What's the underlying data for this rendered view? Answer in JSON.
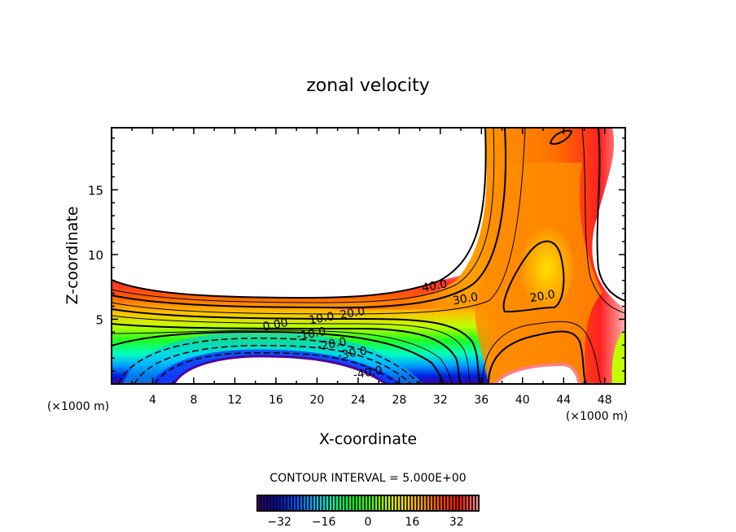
{
  "chart_data": {
    "type": "heatmap",
    "subtype": "filled-contour",
    "title": "zonal velocity",
    "xlabel": "X-coordinate",
    "ylabel": "Z-coordinate",
    "x_unit_label": "(×1000 m)",
    "y_unit_label": "(×1000 m)",
    "xlim": [
      0,
      50
    ],
    "ylim": [
      0,
      19.8
    ],
    "x_ticks": [
      4,
      8,
      12,
      16,
      20,
      24,
      28,
      32,
      36,
      40,
      44,
      48
    ],
    "x_tick_labels": [
      "4",
      "8",
      "12",
      "16",
      "20",
      "24",
      "28",
      "32",
      "36",
      "40",
      "44",
      "48"
    ],
    "y_ticks": [
      5,
      10,
      15
    ],
    "y_tick_labels": [
      "5",
      "10",
      "15"
    ],
    "contour_interval_text": "CONTOUR INTERVAL = 5.000E+00",
    "contour_interval": 5.0,
    "contour_labels": [
      {
        "text": "0.00",
        "x": 16.0,
        "y": 4.3
      },
      {
        "text": "10.0",
        "x": 20.5,
        "y": 4.8
      },
      {
        "text": "-10.0",
        "x": 19.5,
        "y": 3.6
      },
      {
        "text": "20.0",
        "x": 23.5,
        "y": 5.2
      },
      {
        "text": "-20.0",
        "x": 21.5,
        "y": 2.8
      },
      {
        "text": "-30.0",
        "x": 23.5,
        "y": 2.1
      },
      {
        "text": "-40.0",
        "x": 25.0,
        "y": 0.6
      },
      {
        "text": "40.0",
        "x": 31.5,
        "y": 7.3
      },
      {
        "text": "30.0",
        "x": 34.5,
        "y": 6.3
      },
      {
        "text": "20.0",
        "x": 42.0,
        "y": 6.5
      }
    ],
    "colorbar": {
      "min": -40,
      "max": 40,
      "tick_values": [
        -32,
        -16,
        0,
        16,
        32
      ],
      "tick_labels": [
        "−32",
        "−16",
        "0",
        "16",
        "32"
      ],
      "colormap": [
        "#3a0070",
        "#0010b0",
        "#0050ff",
        "#00b0ff",
        "#00ffb0",
        "#00ff40",
        "#40ff00",
        "#c0ff00",
        "#ffe000",
        "#ffa000",
        "#ff5000",
        "#ff1000",
        "#ff9090"
      ]
    },
    "features": {
      "jet_core_max": 40,
      "reverse_flow_min": -40,
      "blank_regions": "values above 40 or below -40 are left unfilled (white)"
    }
  }
}
